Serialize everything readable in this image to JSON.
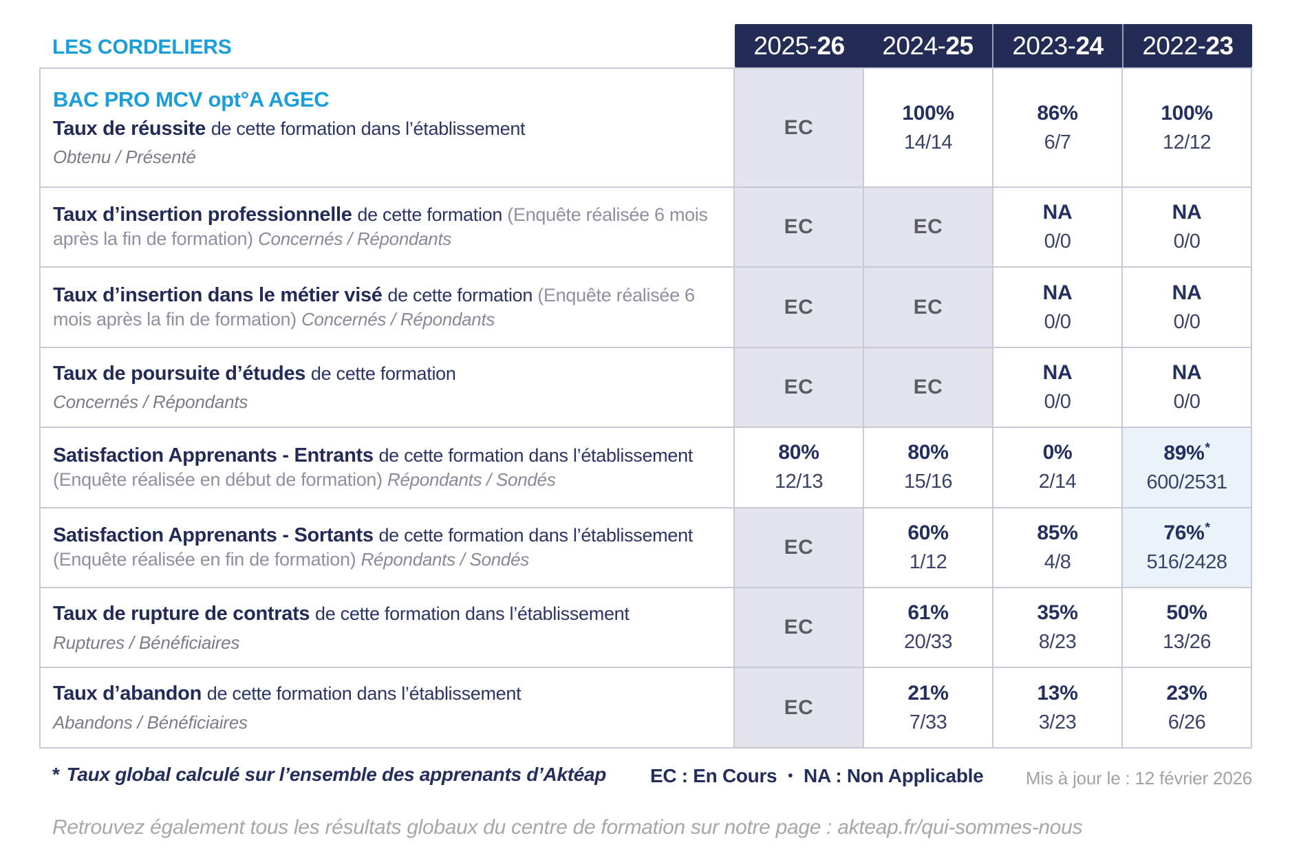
{
  "brand": "LES CORDELIERS",
  "header": {
    "years": [
      {
        "prefix": "2025-",
        "bold": "26"
      },
      {
        "prefix": "2024-",
        "bold": "25"
      },
      {
        "prefix": "2023-",
        "bold": "24"
      },
      {
        "prefix": "2022-",
        "bold": "23"
      }
    ]
  },
  "table": {
    "rows": [
      {
        "heading": "BAC PRO MCV opt°A AGEC",
        "parts": [
          {
            "style": "bold",
            "text": "Taux de réussite "
          },
          {
            "style": "normal",
            "text": "de cette formation dans l’établissement"
          }
        ],
        "sub": "Obtenu / Présenté",
        "cells": [
          {
            "kind": "ec",
            "value": "EC"
          },
          {
            "kind": "value",
            "pct": "100%",
            "frac": "14/14"
          },
          {
            "kind": "value",
            "pct": "86%",
            "frac": "6/7"
          },
          {
            "kind": "value",
            "pct": "100%",
            "frac": "12/12"
          }
        ]
      },
      {
        "heading": null,
        "parts": [
          {
            "style": "bold",
            "text": "Taux d’insertion professionnelle "
          },
          {
            "style": "normal",
            "text": "de cette formation "
          },
          {
            "style": "paren",
            "text": "(Enquête réalisée 6 mois après la fin de formation) "
          },
          {
            "style": "italic",
            "text": "Concernés / Répondants"
          }
        ],
        "sub": null,
        "cells": [
          {
            "kind": "ec",
            "value": "EC"
          },
          {
            "kind": "ec",
            "value": "EC"
          },
          {
            "kind": "value",
            "pct": "NA",
            "frac": "0/0"
          },
          {
            "kind": "value",
            "pct": "NA",
            "frac": "0/0"
          }
        ]
      },
      {
        "heading": null,
        "parts": [
          {
            "style": "bold",
            "text": "Taux d’insertion dans le métier visé "
          },
          {
            "style": "normal",
            "text": "de cette formation "
          },
          {
            "style": "paren",
            "text": "(Enquête réalisée 6 mois après la fin de formation) "
          },
          {
            "style": "italic",
            "text": "Concernés / Répondants"
          }
        ],
        "sub": null,
        "cells": [
          {
            "kind": "ec",
            "value": "EC"
          },
          {
            "kind": "ec",
            "value": "EC"
          },
          {
            "kind": "value",
            "pct": "NA",
            "frac": "0/0"
          },
          {
            "kind": "value",
            "pct": "NA",
            "frac": "0/0"
          }
        ]
      },
      {
        "heading": null,
        "parts": [
          {
            "style": "bold",
            "text": "Taux de poursuite d’études "
          },
          {
            "style": "normal",
            "text": "de cette formation"
          }
        ],
        "sub": "Concernés / Répondants",
        "cells": [
          {
            "kind": "ec",
            "value": "EC"
          },
          {
            "kind": "ec",
            "value": "EC"
          },
          {
            "kind": "value",
            "pct": "NA",
            "frac": "0/0"
          },
          {
            "kind": "value",
            "pct": "NA",
            "frac": "0/0"
          }
        ]
      },
      {
        "heading": null,
        "parts": [
          {
            "style": "bold",
            "text": "Satisfaction Apprenants - Entrants "
          },
          {
            "style": "normal",
            "text": "de cette formation dans l’établissement "
          },
          {
            "style": "paren",
            "text": "(Enquête réalisée en début de formation) "
          },
          {
            "style": "italic",
            "text": "Répondants / Sondés"
          }
        ],
        "sub": null,
        "cells": [
          {
            "kind": "value",
            "pct": "80%",
            "frac": "12/13"
          },
          {
            "kind": "value",
            "pct": "80%",
            "frac": "15/16"
          },
          {
            "kind": "value",
            "pct": "0%",
            "frac": "2/14"
          },
          {
            "kind": "value",
            "pct": "89%",
            "star": "*",
            "frac": "600/2531",
            "highlight": true
          }
        ]
      },
      {
        "heading": null,
        "parts": [
          {
            "style": "bold",
            "text": "Satisfaction Apprenants - Sortants "
          },
          {
            "style": "normal",
            "text": "de cette formation dans l’établissement "
          },
          {
            "style": "paren",
            "text": "(Enquête réalisée en fin de formation) "
          },
          {
            "style": "italic",
            "text": "Répondants / Sondés"
          }
        ],
        "sub": null,
        "cells": [
          {
            "kind": "ec",
            "value": "EC"
          },
          {
            "kind": "value",
            "pct": "60%",
            "frac": "1/12"
          },
          {
            "kind": "value",
            "pct": "85%",
            "frac": "4/8"
          },
          {
            "kind": "value",
            "pct": "76%",
            "star": "*",
            "frac": "516/2428",
            "highlight": true
          }
        ]
      },
      {
        "heading": null,
        "parts": [
          {
            "style": "bold",
            "text": "Taux de rupture de contrats "
          },
          {
            "style": "normal",
            "text": "de cette formation dans l’établissement"
          }
        ],
        "sub": "Ruptures / Bénéficiaires",
        "cells": [
          {
            "kind": "ec",
            "value": "EC"
          },
          {
            "kind": "value",
            "pct": "61%",
            "frac": "20/33"
          },
          {
            "kind": "value",
            "pct": "35%",
            "frac": "8/23"
          },
          {
            "kind": "value",
            "pct": "50%",
            "frac": "13/26"
          }
        ]
      },
      {
        "heading": null,
        "parts": [
          {
            "style": "bold",
            "text": "Taux d’abandon "
          },
          {
            "style": "normal",
            "text": "de cette formation dans l’établissement"
          }
        ],
        "sub": "Abandons / Bénéficiaires",
        "cells": [
          {
            "kind": "ec",
            "value": "EC"
          },
          {
            "kind": "value",
            "pct": "21%",
            "frac": "7/33"
          },
          {
            "kind": "value",
            "pct": "13%",
            "frac": "3/23"
          },
          {
            "kind": "value",
            "pct": "23%",
            "frac": "6/26"
          }
        ]
      }
    ]
  },
  "footer": {
    "star": "*",
    "note": "Taux global calculé sur l’ensemble des apprenants d’Aktéap",
    "legend_ec": "EC : En Cours",
    "bullet": "•",
    "legend_na": "NA : Non Applicable",
    "updated": "Mis à jour le : 12 février 2026",
    "bottom_note": "Retrouvez également tous les résultats globaux du centre de formation sur notre page : akteap.fr/qui-sommes-nous"
  },
  "colors": {
    "brand_cyan": "#1a9edb",
    "navy_text": "#242e5c",
    "header_bg": "#232c55",
    "ec_text_gray": "#5b5d63",
    "muted_gray": "#8c91a0",
    "ec_cell_bg": "#e4e4ed",
    "highlight_cell_bg": "#ebf3fa",
    "grid_line": "#c7c9d6"
  }
}
